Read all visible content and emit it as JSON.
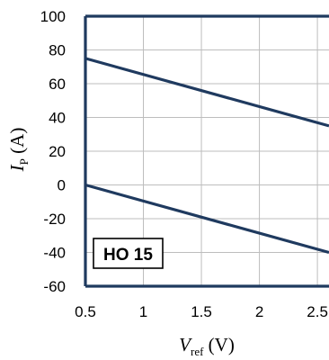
{
  "chart_data": {
    "type": "line",
    "title": "",
    "annotation": "HO 15",
    "xlabel": {
      "main": "V",
      "sub": "ref",
      "unit": " (V)"
    },
    "ylabel": {
      "main": "I",
      "sub": "P",
      "unit": " (A)"
    },
    "xlim": [
      0.5,
      2.6
    ],
    "ylim": [
      -60,
      100
    ],
    "x_ticks": [
      0.5,
      1,
      1.5,
      2,
      2.5
    ],
    "x_tick_labels": [
      "0.5",
      "1",
      "1.5",
      "2",
      "2.5"
    ],
    "y_ticks": [
      100,
      80,
      60,
      40,
      20,
      0,
      -20,
      -40,
      -60
    ],
    "y_tick_labels": [
      "100",
      "80",
      "60",
      "40",
      "20",
      "0",
      "-20",
      "-40",
      "-60"
    ],
    "grid": true,
    "line_color": "#1f3a5f",
    "series": [
      {
        "x": [
          0.5,
          2.6
        ],
        "y": [
          75,
          35
        ]
      },
      {
        "x": [
          0.5,
          2.6
        ],
        "y": [
          0,
          -40
        ]
      }
    ]
  }
}
